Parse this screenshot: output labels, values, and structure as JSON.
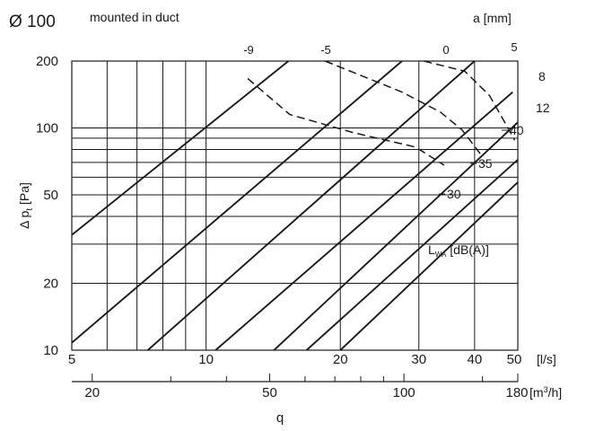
{
  "header": {
    "diameter": "Ø 100",
    "mounting": "mounted in duct",
    "a_axis_label": "a [mm]"
  },
  "chart_data": {
    "type": "line",
    "x_scale": "log",
    "y_scale": "log",
    "grid": true,
    "x_axis_ls": {
      "label": "[l/s]",
      "range": [
        5,
        50
      ],
      "tick_labels": [
        "5",
        "10",
        "20",
        "30",
        "40",
        "50"
      ],
      "gridlines": [
        5,
        6,
        7,
        8,
        9,
        10,
        20,
        30,
        40,
        50
      ]
    },
    "x_axis_m3h": {
      "label": "[m³/h]",
      "range": [
        18,
        180
      ],
      "tick_labels": [
        "20",
        "50",
        "100",
        "180"
      ],
      "ticks": [
        20,
        30,
        40,
        50,
        60,
        70,
        80,
        90,
        100,
        150,
        180
      ]
    },
    "xlabel": "q",
    "y_axis": {
      "label": "Δ pt [Pa]",
      "range": [
        10,
        200
      ],
      "tick_labels": [
        "10",
        "20",
        "50",
        "100",
        "200"
      ],
      "gridlines": [
        10,
        20,
        30,
        40,
        50,
        60,
        70,
        80,
        90,
        100,
        200
      ]
    },
    "damper_lines": {
      "unit": "a [mm]",
      "series": [
        {
          "name": "-9",
          "points": [
            [
              5,
              33
            ],
            [
              15.3,
              200
            ]
          ]
        },
        {
          "name": "-5",
          "points": [
            [
              5,
              10.8
            ],
            [
              27.5,
              200
            ]
          ]
        },
        {
          "name": "",
          "points": [
            [
              7.4,
              10
            ],
            [
              40,
              200
            ]
          ]
        },
        {
          "name": "",
          "points": [
            [
              10.5,
              10
            ],
            [
              48.7,
              145
            ]
          ]
        },
        {
          "name": "0",
          "points": [
            [
              14.2,
              10
            ],
            [
              50,
              106
            ]
          ]
        },
        {
          "name": "",
          "points": [
            [
              16.8,
              10
            ],
            [
              50,
              72
            ]
          ]
        },
        {
          "name": "5",
          "points": [
            [
              20,
              10
            ],
            [
              50,
              57
            ]
          ]
        }
      ]
    },
    "noise_lines": {
      "unit": "LWA [dB(A)]",
      "label_main": "L",
      "label_sub": "WA",
      "label_rest": " [dB(A)]",
      "series": [
        {
          "name": "30",
          "points": [
            [
              30.8,
              200
            ],
            [
              38,
              180
            ],
            [
              43.2,
              140
            ],
            [
              46.5,
              108
            ],
            [
              49.2,
              88
            ]
          ]
        },
        {
          "name": "35",
          "points": [
            [
              18.5,
              200
            ],
            [
              27.5,
              145
            ],
            [
              33.5,
              118
            ],
            [
              37.5,
              98
            ],
            [
              41.3,
              76
            ]
          ]
        },
        {
          "name": "40",
          "points": [
            [
              12.4,
              167
            ],
            [
              15.4,
              115
            ],
            [
              21.5,
              95
            ],
            [
              29.5,
              82
            ],
            [
              34.2,
              68
            ]
          ]
        }
      ]
    },
    "right_labels": [
      "8",
      "12"
    ]
  }
}
